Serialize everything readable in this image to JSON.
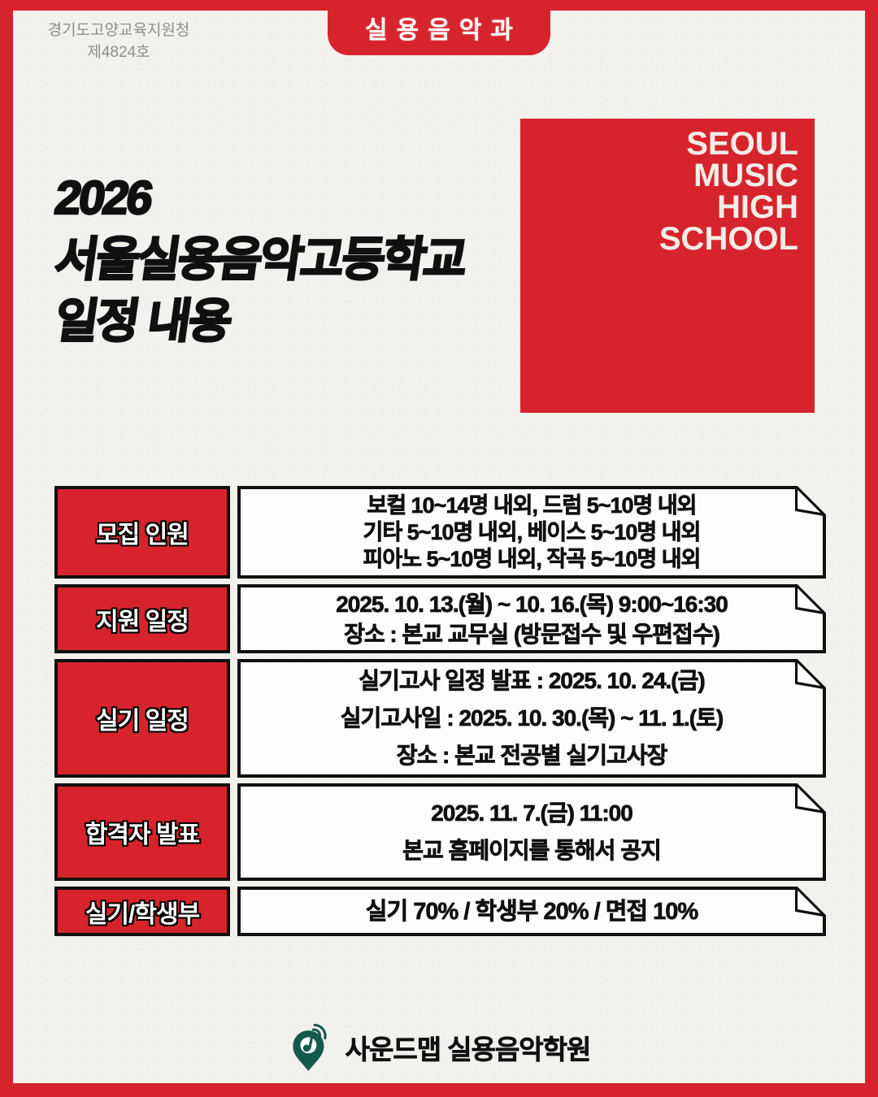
{
  "colors": {
    "red": "#d7242c",
    "paper": "#f2f1ee",
    "ink": "#101010",
    "gray": "#8e8d8b",
    "green": "#14594a"
  },
  "header": {
    "agency_line1": "경기도고양교육지원청",
    "agency_line2": "제4824호",
    "badge": "실용음악과"
  },
  "title": {
    "line1": "2026",
    "line2": "서울실용음악고등학교",
    "line3": "일정 내용"
  },
  "logo": {
    "lines": [
      "SEOUL",
      "MUSIC",
      "HIGH",
      "SCHOOL"
    ]
  },
  "table": {
    "rows": [
      {
        "label": "모집 인원",
        "lines": [
          "보컬 10~14명 내외, 드럼 5~10명 내외",
          "기타 5~10명 내외, 베이스 5~10명 내외",
          "피아노 5~10명 내외, 작곡 5~10명 내외"
        ]
      },
      {
        "label": "지원 일정",
        "lines": [
          "2025. 10. 13.(월) ~ 10. 16.(목) 9:00~16:30",
          "장소 : 본교 교무실 (방문접수 및 우편접수)"
        ]
      },
      {
        "label": "실기 일정",
        "lines": [
          "실기고사 일정 발표 : 2025. 10. 24.(금)",
          "실기고사일 : 2025. 10. 30.(목) ~ 11. 1.(토)",
          "장소 : 본교 전공별 실기고사장"
        ]
      },
      {
        "label": "합격자 발표",
        "lines": [
          "2025. 11. 7.(금) 11:00",
          "본교 홈페이지를 통해서 공지"
        ]
      },
      {
        "label": "실기/학생부",
        "lines": [
          "실기 70% / 학생부 20% / 면접 10%"
        ]
      }
    ]
  },
  "footer": {
    "brand": "사운드맵 실용음악학원"
  }
}
